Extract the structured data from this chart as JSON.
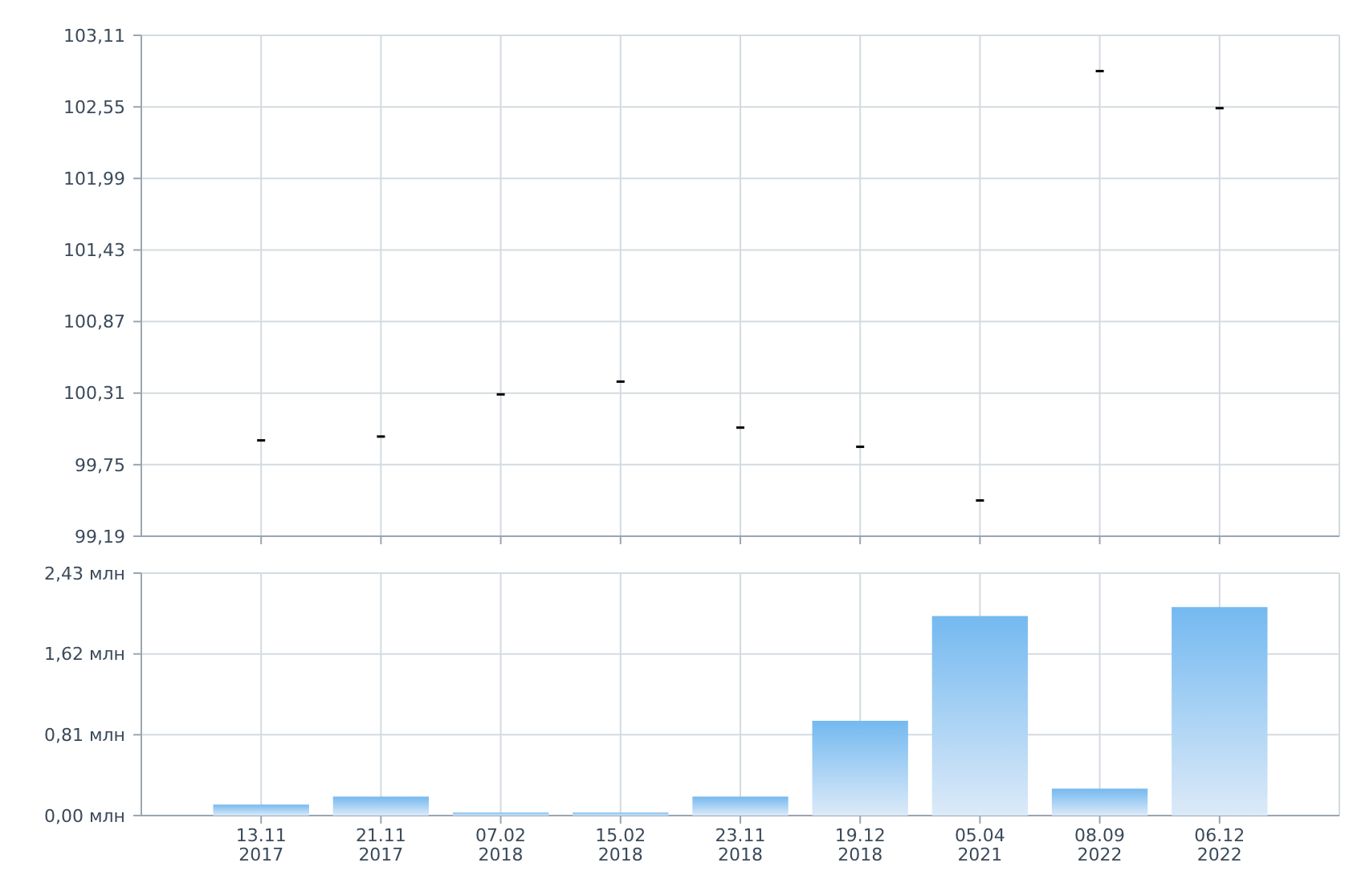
{
  "chart_data": [
    {
      "type": "scatter",
      "categories": [
        null,
        null,
        null,
        null,
        null,
        null,
        null,
        null,
        null
      ],
      "values": [
        99.94,
        99.97,
        100.3,
        100.4,
        100.04,
        99.89,
        99.47,
        102.83,
        102.54
      ],
      "color": "#000000",
      "ylim": [
        99.19,
        103.11
      ],
      "yticks": [
        {
          "value": 99.19,
          "label": "99,19"
        },
        {
          "value": 99.75,
          "label": "99,75"
        },
        {
          "value": 100.31,
          "label": "100,31"
        },
        {
          "value": 100.87,
          "label": "100,87"
        },
        {
          "value": 101.43,
          "label": "101,43"
        },
        {
          "value": 101.99,
          "label": "101,99"
        },
        {
          "value": 102.55,
          "label": "102,55"
        },
        {
          "value": 103.11,
          "label": "103,11"
        }
      ],
      "grid": true,
      "tick_labels": "y"
    },
    {
      "type": "bar",
      "categories": [
        "13.11\n2017",
        "21.11\n2017",
        "07.02\n2018",
        "15.02\n2018",
        "23.11\n2018",
        "19.12\n2018",
        "05.04\n2021",
        "08.09\n2022",
        "06.12\n2022"
      ],
      "values": [
        0.11,
        0.19,
        0.03,
        0.03,
        0.19,
        0.95,
        2.0,
        0.27,
        2.09
      ],
      "color": "#74b9f0",
      "ylim": [
        0,
        2.43
      ],
      "yticks": [
        {
          "value": 0,
          "label": "0,00 млн"
        },
        {
          "value": 0.81,
          "label": "0,81 млн"
        },
        {
          "value": 1.62,
          "label": "1,62 млн"
        },
        {
          "value": 2.43,
          "label": "2,43 млн"
        }
      ],
      "grid": true
    }
  ]
}
